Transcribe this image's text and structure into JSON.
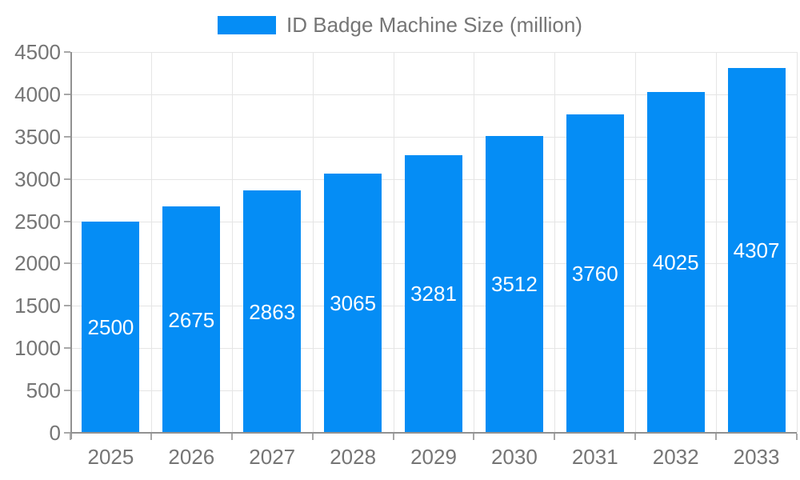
{
  "chart_data": {
    "type": "bar",
    "title": "ID Badge Machine Size (million)",
    "legend": [
      "ID Badge Machine Size (million)"
    ],
    "legend_position": "top-center",
    "categories": [
      "2025",
      "2026",
      "2027",
      "2028",
      "2029",
      "2030",
      "2031",
      "2032",
      "2033"
    ],
    "series": [
      {
        "name": "ID Badge Machine Size (million)",
        "values": [
          2500,
          2675,
          2863,
          3065,
          3281,
          3512,
          3760,
          4025,
          4307
        ]
      }
    ],
    "xlabel": "",
    "ylabel": "",
    "ylim": [
      0,
      4500
    ],
    "yticks": [
      0,
      500,
      1000,
      1500,
      2000,
      2500,
      3000,
      3500,
      4000,
      4500
    ],
    "grid": true,
    "value_labels": "centered-inside-bars",
    "colors": {
      "bar": "#058df5",
      "value_label": "#ffffff",
      "axis_text": "#757575",
      "axis_line": "#919191",
      "gridline": "#e5e5e5",
      "background": "#ffffff"
    }
  }
}
